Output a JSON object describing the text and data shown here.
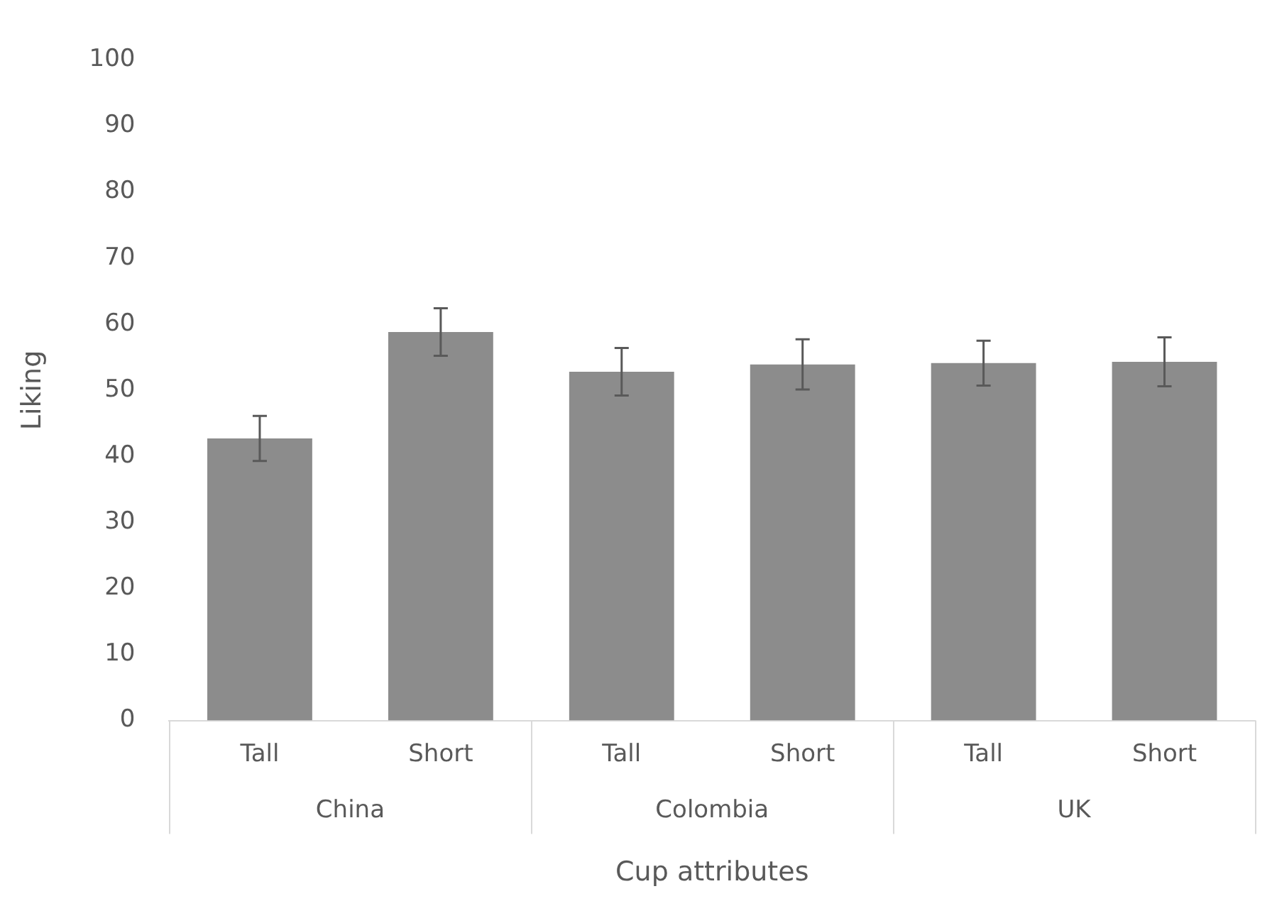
{
  "chart_data": {
    "type": "bar",
    "xlabel": "Cup attributes",
    "ylabel": "Liking",
    "categories": [
      "Tall",
      "Short",
      "Tall",
      "Short",
      "Tall",
      "Short"
    ],
    "values": [
      42.7,
      58.8,
      52.8,
      53.9,
      54.1,
      54.3
    ],
    "errors": [
      3.4,
      3.6,
      3.6,
      3.8,
      3.4,
      3.7
    ],
    "color": "#8c8c8c",
    "annotations": [
      "China",
      "Colombia",
      "UK"
    ],
    "ylim": [
      0,
      100
    ],
    "yticks": [
      0,
      10,
      20,
      30,
      40,
      50,
      60,
      70,
      80,
      90,
      100
    ],
    "grid": false,
    "legend": false
  }
}
